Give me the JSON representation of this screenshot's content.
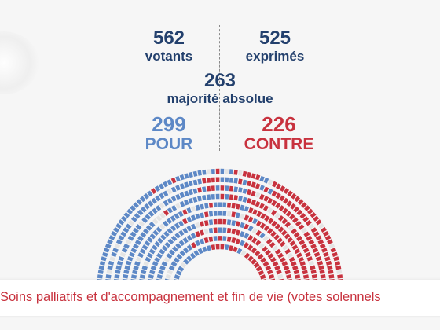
{
  "stats": {
    "votants": {
      "value": "562",
      "label": "votants"
    },
    "exprimes": {
      "value": "525",
      "label": "exprimés"
    },
    "majorite": {
      "value": "263",
      "label": "majorité absolue"
    },
    "pour": {
      "value": "299",
      "label": "POUR"
    },
    "contre": {
      "value": "226",
      "label": "CONTRE"
    }
  },
  "caption": "Soins palliatifs et d'accompagnement et fin de vie (votes solennels",
  "colors": {
    "pour": "#5d88c6",
    "contre": "#c8323e",
    "navy": "#23406d",
    "empty": "#e4e4e4"
  },
  "chart_data": {
    "type": "hemicycle",
    "title": "",
    "categories": [
      "POUR",
      "CONTRE"
    ],
    "values": [
      299,
      226
    ],
    "votants": 562,
    "exprimes": 525,
    "majorite_absolue": 263
  }
}
